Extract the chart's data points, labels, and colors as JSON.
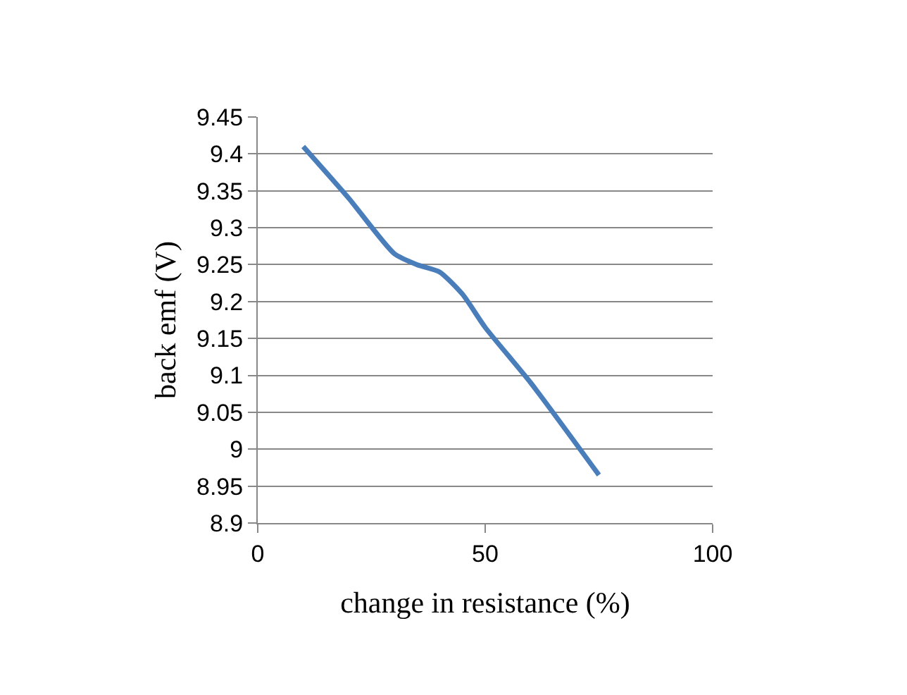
{
  "chart_data": {
    "type": "line",
    "xlabel": "change in resistance (%)",
    "ylabel": "back emf (V)",
    "x": [
      10,
      20,
      30,
      35,
      40,
      45,
      50,
      60,
      75
    ],
    "series": [
      {
        "color": "#4a7ebb",
        "values": [
          9.41,
          9.34,
          9.265,
          9.25,
          9.24,
          9.21,
          9.165,
          9.09,
          8.965
        ]
      }
    ],
    "xlim": [
      0,
      100
    ],
    "xticks": [
      0,
      50,
      100
    ],
    "ylim": [
      8.9,
      9.45
    ],
    "yticks": [
      8.9,
      8.95,
      9,
      9.05,
      9.1,
      9.15,
      9.2,
      9.25,
      9.3,
      9.35,
      9.4,
      9.45
    ],
    "grid": "y",
    "legend": false,
    "marker": "none",
    "line_style": "solid"
  }
}
